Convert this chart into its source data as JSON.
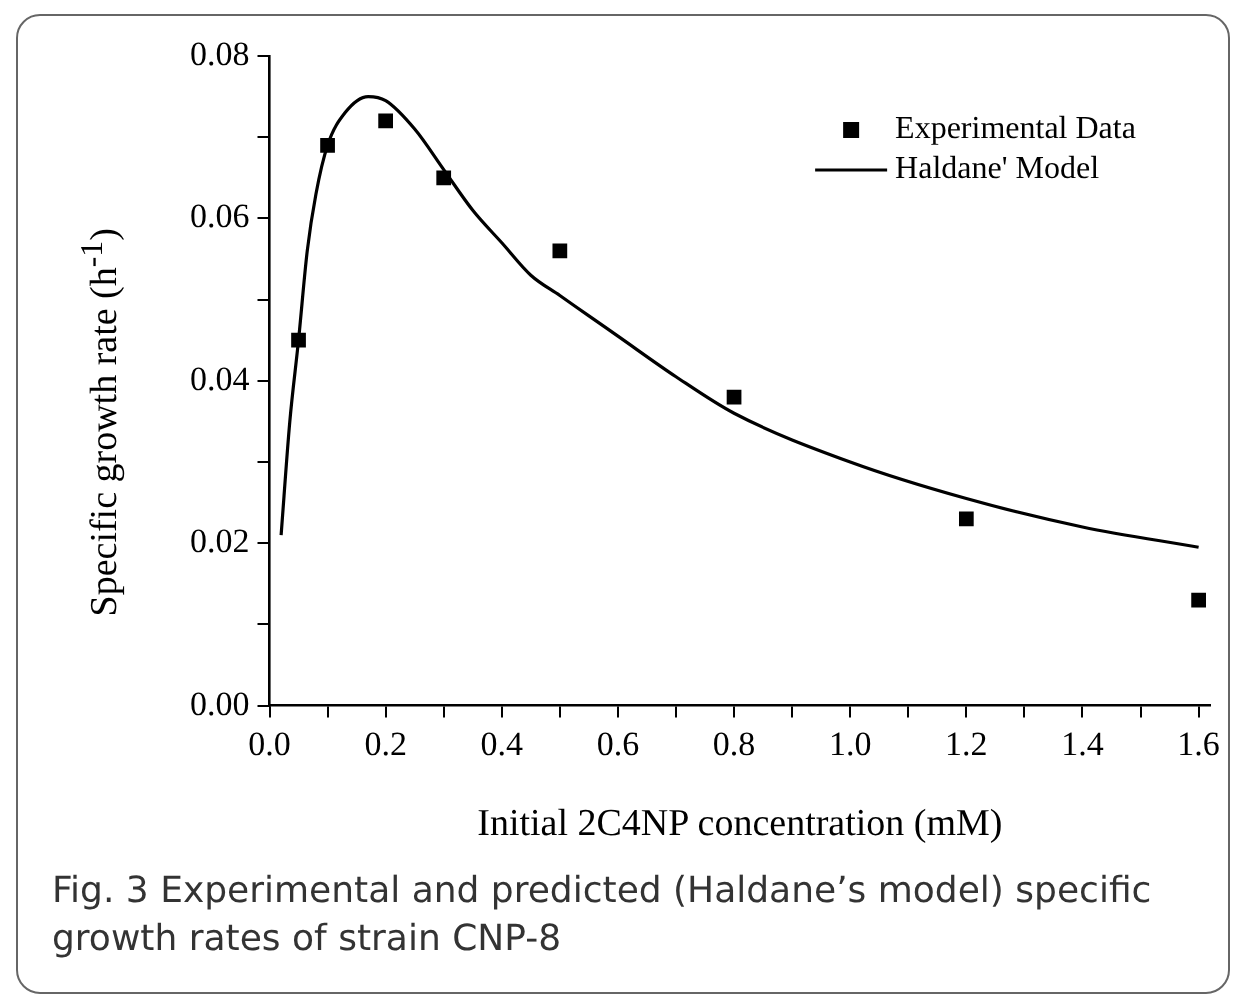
{
  "chart_data": {
    "type": "scatter",
    "xlabel": "Initial 2C4NP concentration (mM)",
    "ylabel": "Specific growth rate (h$^{-1}$)",
    "xlim": [
      0,
      1.62
    ],
    "ylim": [
      0,
      0.08
    ],
    "xticks": [
      {
        "value": 0,
        "label": "0.0"
      },
      {
        "value": 0.1,
        "label": null
      },
      0.2,
      {
        "value": 0.3,
        "label": null
      },
      0.4,
      {
        "value": 0.5,
        "label": null
      },
      0.6,
      {
        "value": 0.7,
        "label": null
      },
      0.8,
      {
        "value": 0.9,
        "label": null
      },
      {
        "value": 1.0,
        "label": "1.0"
      },
      {
        "value": 1.1,
        "label": null
      },
      1.2,
      {
        "value": 1.3,
        "label": null
      },
      1.4,
      {
        "value": 1.5,
        "label": null
      },
      1.6
    ],
    "yticks": [
      {
        "value": 0,
        "label": "0.00"
      },
      {
        "value": 0.01,
        "label": null
      },
      0.02,
      {
        "value": 0.03,
        "label": null
      },
      0.04,
      {
        "value": 0.05,
        "label": null
      },
      0.06,
      {
        "value": 0.07,
        "label": null
      },
      0.08
    ],
    "grid": false,
    "legend": "top right",
    "series": [
      {
        "name": "Experimental Data",
        "marker": "square",
        "color": "#000000",
        "x": [
          0.05,
          0.1,
          0.2,
          0.3,
          0.5,
          0.8,
          1.2,
          1.6
        ],
        "values": [
          0.045,
          0.069,
          0.072,
          0.065,
          0.056,
          0.038,
          0.023,
          0.013
        ]
      },
      {
        "name": "Haldane' Model",
        "type": "line",
        "marker": "none",
        "line_style": "solid",
        "color": "#000000",
        "x": [
          0.02,
          0.035,
          0.05,
          0.065,
          0.08,
          0.1,
          0.13,
          0.17,
          0.2,
          0.25,
          0.3,
          0.35,
          0.4,
          0.45,
          0.5,
          0.55,
          0.6,
          0.7,
          0.8,
          1.0,
          1.2,
          1.4,
          1.6
        ],
        "values": [
          0.021,
          0.035,
          0.045,
          0.056,
          0.063,
          0.069,
          0.073,
          0.075,
          0.0745,
          0.071,
          0.066,
          0.061,
          0.057,
          0.053,
          0.0505,
          0.048,
          0.0455,
          0.0405,
          0.036,
          0.03,
          0.0255,
          0.022,
          0.0195
        ]
      }
    ],
    "annotations": [
      "Fig. 3  Experimental and predicted (Haldane’s model) specific growth rates of strain CNP-8"
    ]
  }
}
